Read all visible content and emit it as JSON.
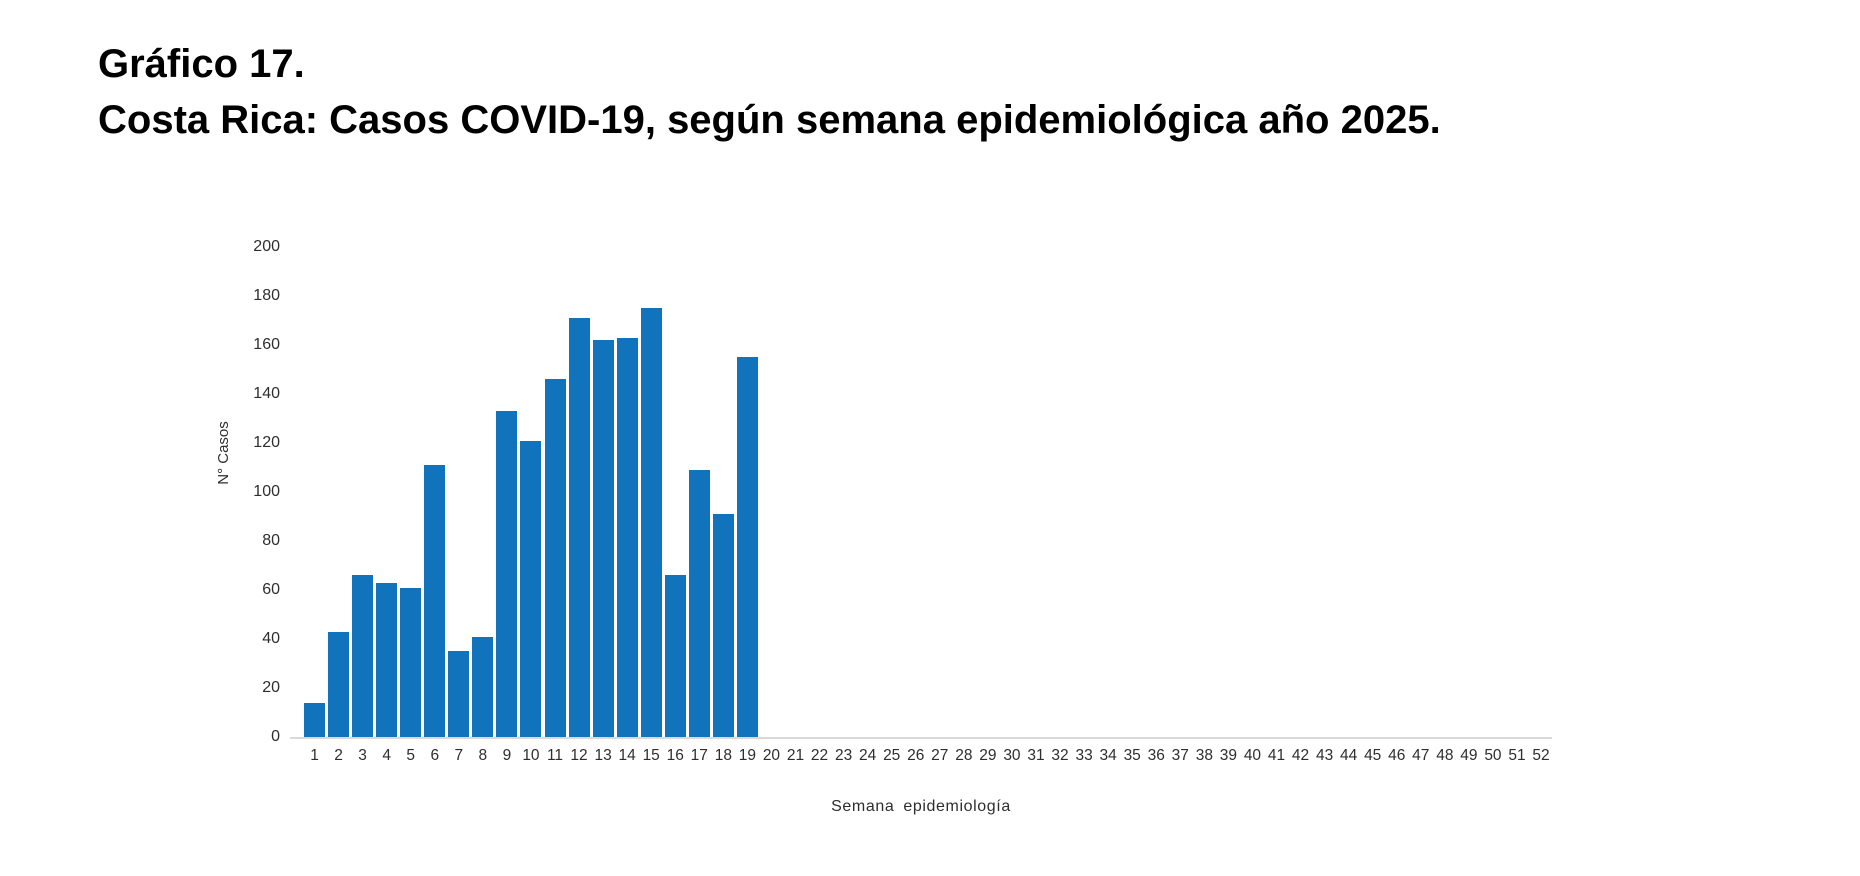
{
  "title": {
    "line1": "Gráfico 17.",
    "line2": "Costa Rica: Casos COVID-19, según semana epidemiológica año 2025."
  },
  "chart_data": {
    "type": "bar",
    "title": "Costa Rica: Casos COVID-19, según semana epidemiológica año 2025",
    "xlabel": "Semana epidemiología",
    "ylabel": "N° Casos",
    "ylim": [
      0,
      200
    ],
    "yticks": [
      0,
      20,
      40,
      60,
      80,
      100,
      120,
      140,
      160,
      180,
      200
    ],
    "grid": false,
    "legend": "none",
    "bar_color": "#1073bc",
    "axis_line_color": "#d9d9d9",
    "tick_label_color": "#2e2e2e",
    "categories": [
      1,
      2,
      3,
      4,
      5,
      6,
      7,
      8,
      9,
      10,
      11,
      12,
      13,
      14,
      15,
      16,
      17,
      18,
      19,
      20,
      21,
      22,
      23,
      24,
      25,
      26,
      27,
      28,
      29,
      30,
      31,
      32,
      33,
      34,
      35,
      36,
      37,
      38,
      39,
      40,
      41,
      42,
      43,
      44,
      45,
      46,
      47,
      48,
      49,
      50,
      51,
      52
    ],
    "values": [
      14,
      43,
      66,
      63,
      61,
      111,
      35,
      41,
      133,
      121,
      146,
      171,
      162,
      163,
      175,
      66,
      109,
      91,
      155,
      null,
      null,
      null,
      null,
      null,
      null,
      null,
      null,
      null,
      null,
      null,
      null,
      null,
      null,
      null,
      null,
      null,
      null,
      null,
      null,
      null,
      null,
      null,
      null,
      null,
      null,
      null,
      null,
      null,
      null,
      null,
      null,
      null
    ]
  }
}
